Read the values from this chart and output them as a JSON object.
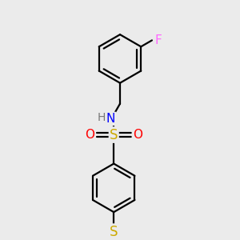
{
  "background_color": "#ebebeb",
  "atom_colors": {
    "F": "#ff66ff",
    "N": "#0000ff",
    "S_sulfonyl": "#ccaa00",
    "S_thioether": "#ccaa00",
    "O": "#ff0000",
    "C": "#000000"
  },
  "bond_lw": 1.6,
  "font_size": 10,
  "fig_width": 3.0,
  "fig_height": 3.0,
  "dpi": 100,
  "xlim": [
    0,
    10
  ],
  "ylim": [
    0,
    10
  ]
}
